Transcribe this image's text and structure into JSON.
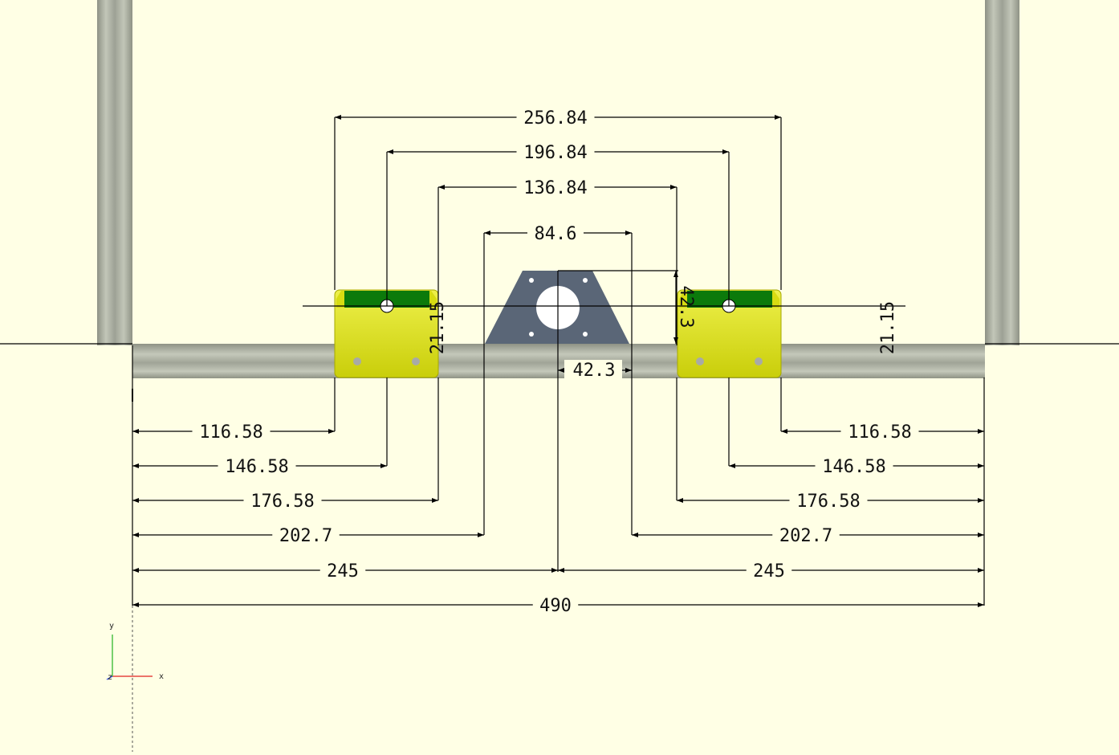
{
  "colors": {
    "background": "#ffffe5",
    "extrusion": "#a8aca0",
    "bracket_body": "#d7dc12",
    "bracket_top": "#0b7a0b",
    "motor_plate": "#5a6677",
    "dimension": "#000000"
  },
  "axes": {
    "x_label": "x",
    "y_label": "y",
    "z_label": "z"
  },
  "dimensions": {
    "top": [
      "256.84",
      "196.84",
      "136.84",
      "84.6"
    ],
    "bracket_height_left": "21.15",
    "bracket_height_right": "21.15",
    "motor_vertical": "42.3",
    "motor_horizontal": "42.3",
    "left_offsets": [
      "116.58",
      "146.58",
      "176.58",
      "202.7",
      "245"
    ],
    "right_offsets": [
      "116.58",
      "146.58",
      "176.58",
      "202.7",
      "245"
    ],
    "total": "490"
  }
}
